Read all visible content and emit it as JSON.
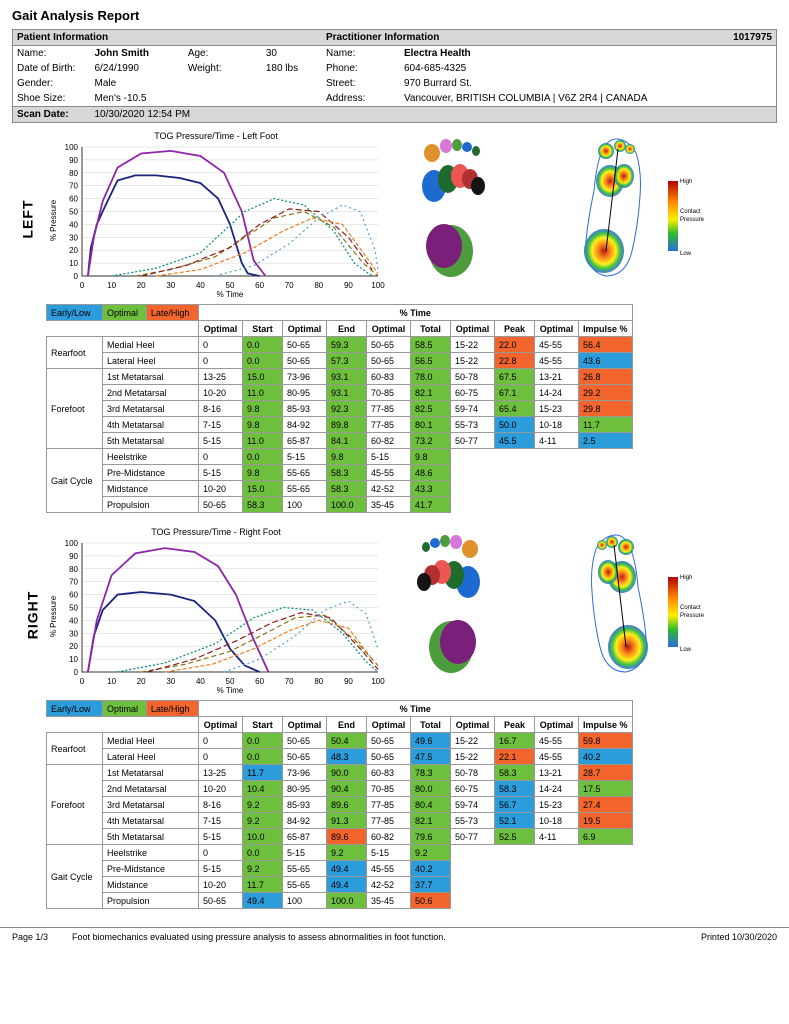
{
  "report_title": "Gait Analysis Report",
  "patient": {
    "section": "Patient Information",
    "name_label": "Name:",
    "name": "John Smith",
    "dob_label": "Date of Birth:",
    "dob": "6/24/1990",
    "gender_label": "Gender:",
    "gender": "Male",
    "shoe_label": "Shoe Size:",
    "shoe": "Men's -10.5",
    "age_label": "Age:",
    "age": "30",
    "weight_label": "Weight:",
    "weight": "180 lbs"
  },
  "practitioner": {
    "section": "Practitioner Information",
    "id": "1017975",
    "name_label": "Name:",
    "name": "Electra Health",
    "phone_label": "Phone:",
    "phone": "604-685-4325",
    "street_label": "Street:",
    "street": "970 Burrard St.",
    "addr_label": "Address:",
    "addr": "Vancouver, BRITISH COLUMBIA | V6Z 2R4 | CANADA"
  },
  "scan": {
    "label": "Scan Date:",
    "val": "10/30/2020 12:54 PM"
  },
  "legend": {
    "early": "Early/Low",
    "optimal": "Optimal",
    "late": "Late/High"
  },
  "heatmap_legend": {
    "high": "High",
    "mid": "Contact Pressure",
    "low": "Low"
  },
  "chart": {
    "left_title": "TOG Pressure/Time - Left Foot",
    "right_title": "TOG Pressure/Time - Right Foot",
    "y_label": "% Pressure",
    "x_label": "% Time",
    "xlim": [
      0,
      100
    ],
    "ylim": [
      0,
      100
    ],
    "x_ticks": [
      0,
      10,
      20,
      30,
      40,
      50,
      60,
      70,
      80,
      90,
      100
    ],
    "y_ticks": [
      0,
      10,
      20,
      30,
      40,
      50,
      60,
      70,
      80,
      90,
      100
    ],
    "grid_color": "#d0d0d0",
    "axis_color": "#333",
    "series_colors": {
      "navy": "#1a237e",
      "purple": "#8e24aa",
      "teal": "#00897b",
      "olive": "#827717",
      "maroon": "#8d1b1b",
      "orange": "#e67e22",
      "blue_dash": "#4d9fd6"
    },
    "line_width_main": 1.8,
    "line_width_dash": 1.2,
    "left_series": {
      "main1": {
        "color": "navy",
        "dash": "",
        "pts": [
          [
            2,
            0
          ],
          [
            3,
            22
          ],
          [
            5,
            40
          ],
          [
            8,
            55
          ],
          [
            12,
            74
          ],
          [
            18,
            78
          ],
          [
            25,
            78
          ],
          [
            33,
            76
          ],
          [
            40,
            72
          ],
          [
            46,
            60
          ],
          [
            50,
            40
          ],
          [
            54,
            10
          ],
          [
            56,
            2
          ],
          [
            60,
            0
          ]
        ]
      },
      "main2": {
        "color": "purple",
        "dash": "",
        "pts": [
          [
            2,
            0
          ],
          [
            4,
            30
          ],
          [
            7,
            58
          ],
          [
            12,
            84
          ],
          [
            20,
            95
          ],
          [
            30,
            97
          ],
          [
            40,
            93
          ],
          [
            48,
            80
          ],
          [
            54,
            50
          ],
          [
            58,
            12
          ],
          [
            62,
            0
          ]
        ]
      },
      "d1": {
        "color": "teal",
        "dash": "2 2",
        "pts": [
          [
            10,
            0
          ],
          [
            25,
            6
          ],
          [
            40,
            18
          ],
          [
            55,
            50
          ],
          [
            65,
            60
          ],
          [
            75,
            55
          ],
          [
            85,
            35
          ],
          [
            92,
            10
          ],
          [
            98,
            0
          ]
        ]
      },
      "d2": {
        "color": "olive",
        "dash": "5 3",
        "pts": [
          [
            18,
            0
          ],
          [
            30,
            5
          ],
          [
            45,
            15
          ],
          [
            55,
            30
          ],
          [
            65,
            45
          ],
          [
            75,
            50
          ],
          [
            85,
            38
          ],
          [
            95,
            10
          ],
          [
            100,
            0
          ]
        ]
      },
      "d3": {
        "color": "maroon",
        "dash": "6 3",
        "pts": [
          [
            20,
            0
          ],
          [
            35,
            8
          ],
          [
            50,
            22
          ],
          [
            60,
            40
          ],
          [
            70,
            52
          ],
          [
            80,
            50
          ],
          [
            90,
            30
          ],
          [
            98,
            5
          ]
        ]
      },
      "d4": {
        "color": "orange",
        "dash": "4 2",
        "pts": [
          [
            25,
            0
          ],
          [
            40,
            5
          ],
          [
            55,
            18
          ],
          [
            68,
            35
          ],
          [
            78,
            45
          ],
          [
            88,
            40
          ],
          [
            96,
            15
          ],
          [
            100,
            2
          ]
        ]
      },
      "d5": {
        "color": "blue_dash",
        "dash": "2 3",
        "pts": [
          [
            45,
            0
          ],
          [
            58,
            8
          ],
          [
            70,
            25
          ],
          [
            80,
            45
          ],
          [
            88,
            55
          ],
          [
            94,
            50
          ],
          [
            99,
            20
          ],
          [
            100,
            5
          ]
        ]
      }
    },
    "right_series": {
      "main1": {
        "color": "navy",
        "dash": "",
        "pts": [
          [
            2,
            0
          ],
          [
            4,
            28
          ],
          [
            7,
            48
          ],
          [
            12,
            60
          ],
          [
            20,
            62
          ],
          [
            30,
            60
          ],
          [
            38,
            55
          ],
          [
            45,
            40
          ],
          [
            50,
            18
          ],
          [
            55,
            5
          ],
          [
            60,
            0
          ]
        ]
      },
      "main2": {
        "color": "purple",
        "dash": "",
        "pts": [
          [
            2,
            0
          ],
          [
            5,
            40
          ],
          [
            10,
            75
          ],
          [
            18,
            92
          ],
          [
            28,
            96
          ],
          [
            38,
            93
          ],
          [
            46,
            82
          ],
          [
            52,
            60
          ],
          [
            58,
            25
          ],
          [
            63,
            0
          ]
        ]
      },
      "d1": {
        "color": "teal",
        "dash": "2 2",
        "pts": [
          [
            12,
            0
          ],
          [
            28,
            7
          ],
          [
            45,
            22
          ],
          [
            58,
            42
          ],
          [
            68,
            50
          ],
          [
            78,
            48
          ],
          [
            88,
            30
          ],
          [
            96,
            8
          ],
          [
            100,
            0
          ]
        ]
      },
      "d2": {
        "color": "olive",
        "dash": "5 3",
        "pts": [
          [
            20,
            0
          ],
          [
            35,
            6
          ],
          [
            50,
            16
          ],
          [
            62,
            30
          ],
          [
            72,
            42
          ],
          [
            82,
            44
          ],
          [
            92,
            25
          ],
          [
            100,
            5
          ]
        ]
      },
      "d3": {
        "color": "maroon",
        "dash": "6 3",
        "pts": [
          [
            22,
            0
          ],
          [
            38,
            10
          ],
          [
            52,
            24
          ],
          [
            64,
            38
          ],
          [
            74,
            46
          ],
          [
            84,
            42
          ],
          [
            94,
            18
          ],
          [
            100,
            2
          ]
        ]
      },
      "d4": {
        "color": "orange",
        "dash": "4 2",
        "pts": [
          [
            28,
            0
          ],
          [
            44,
            6
          ],
          [
            58,
            18
          ],
          [
            70,
            32
          ],
          [
            80,
            40
          ],
          [
            90,
            34
          ],
          [
            98,
            10
          ]
        ]
      },
      "d5": {
        "color": "blue_dash",
        "dash": "2 3",
        "pts": [
          [
            48,
            0
          ],
          [
            60,
            10
          ],
          [
            72,
            28
          ],
          [
            82,
            48
          ],
          [
            90,
            55
          ],
          [
            96,
            45
          ],
          [
            100,
            18
          ]
        ]
      }
    }
  },
  "foot_colors": [
    "#1e6b2e",
    "#b33030",
    "#7a1f7a",
    "#d976d9",
    "#e55",
    "#e0912b",
    "#1e6bd0",
    "#4d9c3d",
    "#141414"
  ],
  "table_headers": {
    "time": "% Time",
    "optimal": "Optimal",
    "start": "Start",
    "end": "End",
    "total": "Total",
    "peak": "Peak",
    "impulse": "Impulse %"
  },
  "groups": {
    "rearfoot": "Rearfoot",
    "forefoot": "Forefoot",
    "gaitcycle": "Gait Cycle"
  },
  "left_rows": [
    {
      "g": "rearfoot",
      "label": "Medial Heel",
      "opt1": "0",
      "start": "0.0",
      "sc": "optimal",
      "opt2": "50-65",
      "end": "59.3",
      "ec": "optimal",
      "opt3": "50-65",
      "total": "58.5",
      "tc": "optimal",
      "opt4": "15-22",
      "peak": "22.0",
      "pc": "late",
      "opt5": "45-55",
      "imp": "56.4",
      "ic": "late"
    },
    {
      "g": "rearfoot",
      "label": "Lateral Heel",
      "opt1": "0",
      "start": "0.0",
      "sc": "optimal",
      "opt2": "50-65",
      "end": "57.3",
      "ec": "optimal",
      "opt3": "50-65",
      "total": "56.5",
      "tc": "optimal",
      "opt4": "15-22",
      "peak": "22.8",
      "pc": "late",
      "opt5": "45-55",
      "imp": "43.6",
      "ic": "early"
    },
    {
      "g": "forefoot",
      "label": "1st Metatarsal",
      "opt1": "13-25",
      "start": "15.0",
      "sc": "optimal",
      "opt2": "73-96",
      "end": "93.1",
      "ec": "optimal",
      "opt3": "60-83",
      "total": "78.0",
      "tc": "optimal",
      "opt4": "50-78",
      "peak": "67.5",
      "pc": "optimal",
      "opt5": "13-21",
      "imp": "26.8",
      "ic": "late"
    },
    {
      "g": "forefoot",
      "label": "2nd Metatarsal",
      "opt1": "10-20",
      "start": "11.0",
      "sc": "optimal",
      "opt2": "80-95",
      "end": "93.1",
      "ec": "optimal",
      "opt3": "70-85",
      "total": "82.1",
      "tc": "optimal",
      "opt4": "60-75",
      "peak": "67.1",
      "pc": "optimal",
      "opt5": "14-24",
      "imp": "29.2",
      "ic": "late"
    },
    {
      "g": "forefoot",
      "label": "3rd Metatarsal",
      "opt1": "8-16",
      "start": "9.8",
      "sc": "optimal",
      "opt2": "85-93",
      "end": "92.3",
      "ec": "optimal",
      "opt3": "77-85",
      "total": "82.5",
      "tc": "optimal",
      "opt4": "59-74",
      "peak": "65.4",
      "pc": "optimal",
      "opt5": "15-23",
      "imp": "29.8",
      "ic": "late"
    },
    {
      "g": "forefoot",
      "label": "4th Metatarsal",
      "opt1": "7-15",
      "start": "9.8",
      "sc": "optimal",
      "opt2": "84-92",
      "end": "89.8",
      "ec": "optimal",
      "opt3": "77-85",
      "total": "80.1",
      "tc": "optimal",
      "opt4": "55-73",
      "peak": "50.0",
      "pc": "early",
      "opt5": "10-18",
      "imp": "11.7",
      "ic": "optimal"
    },
    {
      "g": "forefoot",
      "label": "5th Metatarsal",
      "opt1": "5-15",
      "start": "11.0",
      "sc": "optimal",
      "opt2": "65-87",
      "end": "84.1",
      "ec": "optimal",
      "opt3": "60-82",
      "total": "73.2",
      "tc": "optimal",
      "opt4": "50-77",
      "peak": "45.5",
      "pc": "early",
      "opt5": "4-11",
      "imp": "2.5",
      "ic": "early"
    },
    {
      "g": "gaitcycle",
      "label": "Heelstrike",
      "opt1": "0",
      "start": "0.0",
      "sc": "optimal",
      "opt2": "5-15",
      "end": "9.8",
      "ec": "optimal",
      "opt3": "5-15",
      "total": "9.8",
      "tc": "optimal"
    },
    {
      "g": "gaitcycle",
      "label": "Pre-Midstance",
      "opt1": "5-15",
      "start": "9.8",
      "sc": "optimal",
      "opt2": "55-65",
      "end": "58.3",
      "ec": "optimal",
      "opt3": "45-55",
      "total": "48.6",
      "tc": "optimal"
    },
    {
      "g": "gaitcycle",
      "label": "Midstance",
      "opt1": "10-20",
      "start": "15.0",
      "sc": "optimal",
      "opt2": "55-65",
      "end": "58.3",
      "ec": "optimal",
      "opt3": "42-52",
      "total": "43.3",
      "tc": "optimal"
    },
    {
      "g": "gaitcycle",
      "label": "Propulsion",
      "opt1": "50-65",
      "start": "58.3",
      "sc": "optimal",
      "opt2": "100",
      "end": "100.0",
      "ec": "optimal",
      "opt3": "35-45",
      "total": "41.7",
      "tc": "optimal"
    }
  ],
  "right_rows": [
    {
      "g": "rearfoot",
      "label": "Medial Heel",
      "opt1": "0",
      "start": "0.0",
      "sc": "optimal",
      "opt2": "50-65",
      "end": "50.4",
      "ec": "optimal",
      "opt3": "50-65",
      "total": "49.6",
      "tc": "early",
      "opt4": "15-22",
      "peak": "16.7",
      "pc": "optimal",
      "opt5": "45-55",
      "imp": "59.8",
      "ic": "late"
    },
    {
      "g": "rearfoot",
      "label": "Lateral Heel",
      "opt1": "0",
      "start": "0.0",
      "sc": "optimal",
      "opt2": "50-65",
      "end": "48.3",
      "ec": "early",
      "opt3": "50-65",
      "total": "47.5",
      "tc": "early",
      "opt4": "15-22",
      "peak": "22.1",
      "pc": "late",
      "opt5": "45-55",
      "imp": "40.2",
      "ic": "early"
    },
    {
      "g": "forefoot",
      "label": "1st Metatarsal",
      "opt1": "13-25",
      "start": "11.7",
      "sc": "early",
      "opt2": "73-96",
      "end": "90.0",
      "ec": "optimal",
      "opt3": "60-83",
      "total": "78.3",
      "tc": "optimal",
      "opt4": "50-78",
      "peak": "58.3",
      "pc": "optimal",
      "opt5": "13-21",
      "imp": "28.7",
      "ic": "late"
    },
    {
      "g": "forefoot",
      "label": "2nd Metatarsal",
      "opt1": "10-20",
      "start": "10.4",
      "sc": "optimal",
      "opt2": "80-95",
      "end": "90.4",
      "ec": "optimal",
      "opt3": "70-85",
      "total": "80.0",
      "tc": "optimal",
      "opt4": "60-75",
      "peak": "58.3",
      "pc": "early",
      "opt5": "14-24",
      "imp": "17.5",
      "ic": "optimal"
    },
    {
      "g": "forefoot",
      "label": "3rd Metatarsal",
      "opt1": "8-16",
      "start": "9.2",
      "sc": "optimal",
      "opt2": "85-93",
      "end": "89.6",
      "ec": "optimal",
      "opt3": "77-85",
      "total": "80.4",
      "tc": "optimal",
      "opt4": "59-74",
      "peak": "56.7",
      "pc": "early",
      "opt5": "15-23",
      "imp": "27.4",
      "ic": "late"
    },
    {
      "g": "forefoot",
      "label": "4th Metatarsal",
      "opt1": "7-15",
      "start": "9.2",
      "sc": "optimal",
      "opt2": "84-92",
      "end": "91.3",
      "ec": "optimal",
      "opt3": "77-85",
      "total": "82.1",
      "tc": "optimal",
      "opt4": "55-73",
      "peak": "52.1",
      "pc": "early",
      "opt5": "10-18",
      "imp": "19.5",
      "ic": "late"
    },
    {
      "g": "forefoot",
      "label": "5th Metatarsal",
      "opt1": "5-15",
      "start": "10.0",
      "sc": "optimal",
      "opt2": "65-87",
      "end": "89.6",
      "ec": "late",
      "opt3": "60-82",
      "total": "79.6",
      "tc": "optimal",
      "opt4": "50-77",
      "peak": "52.5",
      "pc": "optimal",
      "opt5": "4-11",
      "imp": "6.9",
      "ic": "optimal"
    },
    {
      "g": "gaitcycle",
      "label": "Heelstrike",
      "opt1": "0",
      "start": "0.0",
      "sc": "optimal",
      "opt2": "5-15",
      "end": "9.2",
      "ec": "optimal",
      "opt3": "5-15",
      "total": "9.2",
      "tc": "optimal"
    },
    {
      "g": "gaitcycle",
      "label": "Pre-Midstance",
      "opt1": "5-15",
      "start": "9.2",
      "sc": "optimal",
      "opt2": "55-65",
      "end": "49.4",
      "ec": "early",
      "opt3": "45-55",
      "total": "40.2",
      "tc": "early"
    },
    {
      "g": "gaitcycle",
      "label": "Midstance",
      "opt1": "10-20",
      "start": "11.7",
      "sc": "optimal",
      "opt2": "55-65",
      "end": "49.4",
      "ec": "early",
      "opt3": "42-52",
      "total": "37.7",
      "tc": "early"
    },
    {
      "g": "gaitcycle",
      "label": "Propulsion",
      "opt1": "50-65",
      "start": "49.4",
      "sc": "early",
      "opt2": "100",
      "end": "100.0",
      "ec": "optimal",
      "opt3": "35-45",
      "total": "50.6",
      "tc": "late"
    }
  ],
  "side": {
    "left": "LEFT",
    "right": "RIGHT"
  },
  "footer": {
    "page": "Page 1/3",
    "desc": "Foot biomechanics evaluated using pressure analysis to assess abnormalities in foot function.",
    "printed": "Printed 10/30/2020"
  }
}
